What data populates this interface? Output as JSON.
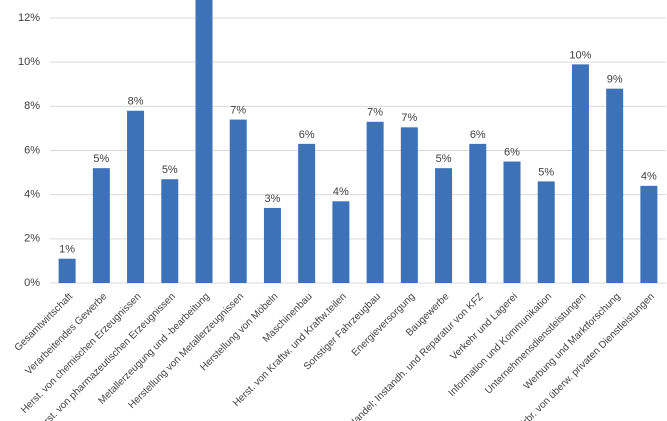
{
  "chart_data": {
    "type": "bar",
    "categories": [
      "Gesamtwirtschaft",
      "Verarbeitendes Gewerbe",
      "Herst. von chemischen Erzeugnissen",
      "Herst. von pharmazeutischen Erzeugnissen",
      "Metallerzeugung und -bearbeitung",
      "Herstellung von Metallerzeugnissen",
      "Herstellung von Möbeln",
      "Maschinenbau",
      "Herst. von Kraftw. und Kraftw.teilen",
      "Sonstiger Fahrzeugbau",
      "Energieversorgung",
      "Baugewerbe",
      "Handel; Instandh. und Reparatur von KFZ",
      "Verkehr und Lagerei",
      "Information und Kommunikation",
      "Unternehmensdienstleistungen",
      "Werbung und Marktforschung",
      "Erbr. von überw. privaten Dienstleistungen"
    ],
    "values": [
      1.1,
      5.2,
      7.8,
      4.7,
      13,
      7.4,
      3.4,
      6.3,
      3.7,
      7.3,
      7.05,
      5.2,
      6.3,
      5.5,
      4.6,
      9.9,
      8.8,
      4.4
    ],
    "value_labels": [
      "1%",
      "5%",
      "8%",
      "5%",
      null,
      "7%",
      "3%",
      "6%",
      "4%",
      "7%",
      "7%",
      "5%",
      "6%",
      "6%",
      "5%",
      "10%",
      "9%",
      "4%"
    ],
    "color": "#3d72b8",
    "ylim": [
      0,
      12
    ],
    "yticks": [
      {
        "value": 0,
        "label": "0%"
      },
      {
        "value": 2,
        "label": "2%"
      },
      {
        "value": 4,
        "label": "4%"
      },
      {
        "value": 6,
        "label": "6%"
      },
      {
        "value": 8,
        "label": "8%"
      },
      {
        "value": 10,
        "label": "10%"
      },
      {
        "value": 12,
        "label": "12%"
      }
    ],
    "grid": true
  }
}
